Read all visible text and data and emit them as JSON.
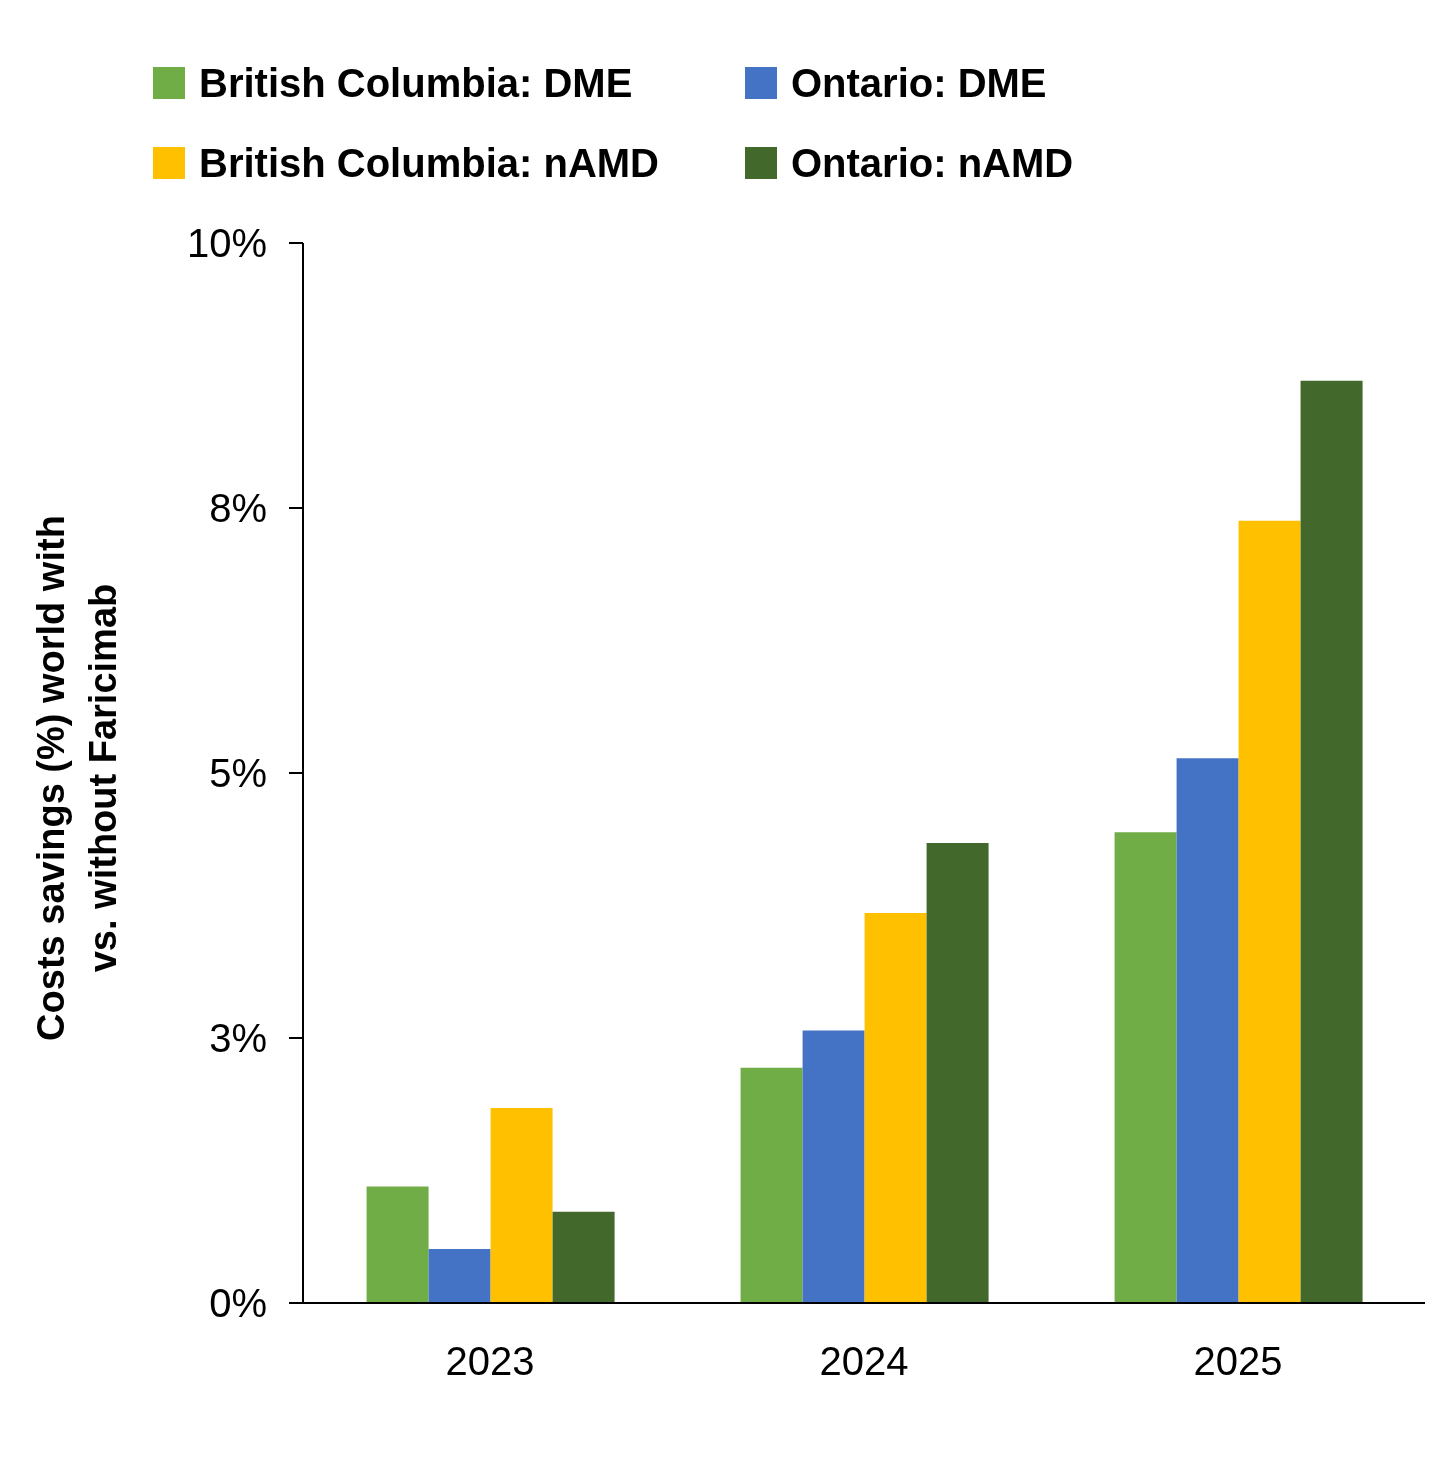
{
  "chart_data": {
    "type": "bar",
    "ylabel": "Costs savings (%) world with vs. without Faricimab",
    "categories": [
      "2023",
      "2024",
      "2025"
    ],
    "series": [
      {
        "name": "British Columbia: DME",
        "color": "#70ad47",
        "values": [
          1.1,
          2.22,
          4.44
        ]
      },
      {
        "name": "Ontario: DME",
        "color": "#4472c4",
        "values": [
          0.51,
          2.57,
          5.14
        ]
      },
      {
        "name": "British Columbia: nAMD",
        "color": "#ffc000",
        "values": [
          1.84,
          3.68,
          7.38
        ]
      },
      {
        "name": "Ontario: nAMD",
        "color": "#43682b",
        "values": [
          0.86,
          4.34,
          8.7
        ]
      }
    ],
    "ylim": [
      0,
      10
    ],
    "yticks": [
      {
        "value": 0,
        "label": "0%"
      },
      {
        "value": 2.5,
        "label": "3%"
      },
      {
        "value": 5,
        "label": "5%"
      },
      {
        "value": 7.5,
        "label": "8%"
      },
      {
        "value": 10,
        "label": "10%"
      }
    ],
    "grid": false,
    "legend": "top"
  }
}
